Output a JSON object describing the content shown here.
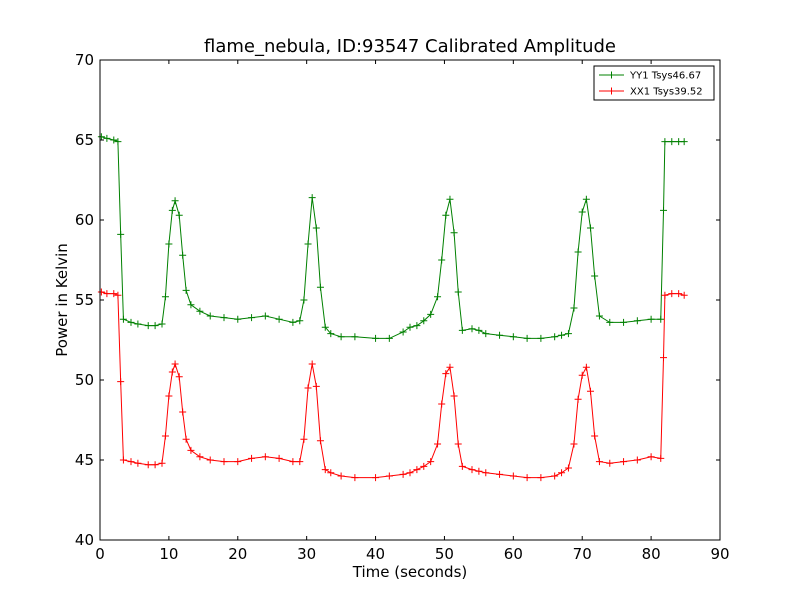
{
  "chart_data": {
    "type": "line",
    "title": "flame_nebula, ID:93547 Calibrated Amplitude",
    "xlabel": "Time (seconds)",
    "ylabel": "Power in Kelvin",
    "xlim": [
      0,
      90
    ],
    "ylim": [
      40,
      70
    ],
    "xticks": [
      "0",
      "10",
      "20",
      "30",
      "40",
      "50",
      "60",
      "70",
      "80",
      "90"
    ],
    "yticks": [
      "40",
      "45",
      "50",
      "55",
      "60",
      "65",
      "70"
    ],
    "grid": false,
    "legend_position": "top-right",
    "marker": "+",
    "series": [
      {
        "name": "YY1 Tsys46.67",
        "color": "#008000",
        "points": [
          [
            0.2,
            65.2
          ],
          [
            1.0,
            65.1
          ],
          [
            2.0,
            65.0
          ],
          [
            2.6,
            64.9
          ],
          [
            3.0,
            59.1
          ],
          [
            3.4,
            53.8
          ],
          [
            4.5,
            53.6
          ],
          [
            5.5,
            53.5
          ],
          [
            7.0,
            53.4
          ],
          [
            8.0,
            53.4
          ],
          [
            9.0,
            53.5
          ],
          [
            9.5,
            55.2
          ],
          [
            10.0,
            58.5
          ],
          [
            10.5,
            60.6
          ],
          [
            10.9,
            61.2
          ],
          [
            11.5,
            60.3
          ],
          [
            12.0,
            57.8
          ],
          [
            12.5,
            55.6
          ],
          [
            13.2,
            54.7
          ],
          [
            14.5,
            54.3
          ],
          [
            16,
            54.0
          ],
          [
            18,
            53.9
          ],
          [
            20,
            53.8
          ],
          [
            22,
            53.9
          ],
          [
            24,
            54.0
          ],
          [
            26,
            53.8
          ],
          [
            28,
            53.6
          ],
          [
            29.0,
            53.7
          ],
          [
            29.6,
            55.0
          ],
          [
            30.2,
            58.5
          ],
          [
            30.8,
            61.4
          ],
          [
            31.4,
            59.5
          ],
          [
            32.0,
            55.8
          ],
          [
            32.7,
            53.3
          ],
          [
            33.5,
            52.9
          ],
          [
            35,
            52.7
          ],
          [
            37,
            52.7
          ],
          [
            40,
            52.6
          ],
          [
            42,
            52.6
          ],
          [
            44,
            53.0
          ],
          [
            45,
            53.3
          ],
          [
            46,
            53.4
          ],
          [
            47,
            53.7
          ],
          [
            48,
            54.1
          ],
          [
            49,
            55.2
          ],
          [
            49.6,
            57.5
          ],
          [
            50.2,
            60.3
          ],
          [
            50.8,
            61.3
          ],
          [
            51.4,
            59.2
          ],
          [
            52.0,
            55.5
          ],
          [
            52.6,
            53.1
          ],
          [
            54,
            53.2
          ],
          [
            55,
            53.1
          ],
          [
            56,
            52.9
          ],
          [
            58,
            52.8
          ],
          [
            60,
            52.7
          ],
          [
            62,
            52.6
          ],
          [
            64,
            52.6
          ],
          [
            66,
            52.7
          ],
          [
            67,
            52.8
          ],
          [
            68,
            52.9
          ],
          [
            68.8,
            54.5
          ],
          [
            69.4,
            58.0
          ],
          [
            70.0,
            60.5
          ],
          [
            70.6,
            61.3
          ],
          [
            71.2,
            59.5
          ],
          [
            71.8,
            56.5
          ],
          [
            72.5,
            54.0
          ],
          [
            74,
            53.6
          ],
          [
            76,
            53.6
          ],
          [
            78,
            53.7
          ],
          [
            80,
            53.8
          ],
          [
            81.4,
            53.8
          ],
          [
            81.8,
            60.6
          ],
          [
            82.0,
            64.9
          ],
          [
            83,
            64.9
          ],
          [
            84,
            64.9
          ],
          [
            84.8,
            64.9
          ]
        ]
      },
      {
        "name": "XX1 Tsys39.52",
        "color": "#ff0000",
        "points": [
          [
            0.2,
            55.5
          ],
          [
            1.0,
            55.4
          ],
          [
            2.0,
            55.4
          ],
          [
            2.6,
            55.3
          ],
          [
            3.0,
            49.9
          ],
          [
            3.4,
            45.0
          ],
          [
            4.5,
            44.9
          ],
          [
            5.5,
            44.8
          ],
          [
            7.0,
            44.7
          ],
          [
            8.0,
            44.7
          ],
          [
            9.0,
            44.8
          ],
          [
            9.5,
            46.5
          ],
          [
            10.0,
            49.0
          ],
          [
            10.5,
            50.5
          ],
          [
            10.9,
            51.0
          ],
          [
            11.5,
            50.2
          ],
          [
            12.0,
            48.0
          ],
          [
            12.5,
            46.3
          ],
          [
            13.2,
            45.6
          ],
          [
            14.5,
            45.2
          ],
          [
            16,
            45.0
          ],
          [
            18,
            44.9
          ],
          [
            20,
            44.9
          ],
          [
            22,
            45.1
          ],
          [
            24,
            45.2
          ],
          [
            26,
            45.1
          ],
          [
            28,
            44.9
          ],
          [
            29.0,
            44.9
          ],
          [
            29.6,
            46.3
          ],
          [
            30.2,
            49.5
          ],
          [
            30.8,
            51.0
          ],
          [
            31.4,
            49.6
          ],
          [
            32.0,
            46.2
          ],
          [
            32.7,
            44.4
          ],
          [
            33.5,
            44.2
          ],
          [
            35,
            44.0
          ],
          [
            37,
            43.9
          ],
          [
            40,
            43.9
          ],
          [
            42,
            44.0
          ],
          [
            44,
            44.1
          ],
          [
            45,
            44.2
          ],
          [
            46,
            44.4
          ],
          [
            47,
            44.6
          ],
          [
            48,
            44.9
          ],
          [
            49,
            46.0
          ],
          [
            49.6,
            48.5
          ],
          [
            50.2,
            50.4
          ],
          [
            50.8,
            50.8
          ],
          [
            51.4,
            49.0
          ],
          [
            52.0,
            46.0
          ],
          [
            52.6,
            44.6
          ],
          [
            54,
            44.4
          ],
          [
            55,
            44.3
          ],
          [
            56,
            44.2
          ],
          [
            58,
            44.1
          ],
          [
            60,
            44.0
          ],
          [
            62,
            43.9
          ],
          [
            64,
            43.9
          ],
          [
            66,
            44.0
          ],
          [
            67,
            44.2
          ],
          [
            68,
            44.5
          ],
          [
            68.8,
            46.0
          ],
          [
            69.4,
            48.8
          ],
          [
            70.0,
            50.3
          ],
          [
            70.6,
            50.8
          ],
          [
            71.2,
            49.3
          ],
          [
            71.8,
            46.5
          ],
          [
            72.5,
            44.9
          ],
          [
            74,
            44.8
          ],
          [
            76,
            44.9
          ],
          [
            78,
            45.0
          ],
          [
            80,
            45.2
          ],
          [
            81.4,
            45.1
          ],
          [
            81.8,
            51.4
          ],
          [
            82.0,
            55.3
          ],
          [
            83,
            55.4
          ],
          [
            84,
            55.4
          ],
          [
            84.8,
            55.3
          ]
        ]
      }
    ]
  }
}
